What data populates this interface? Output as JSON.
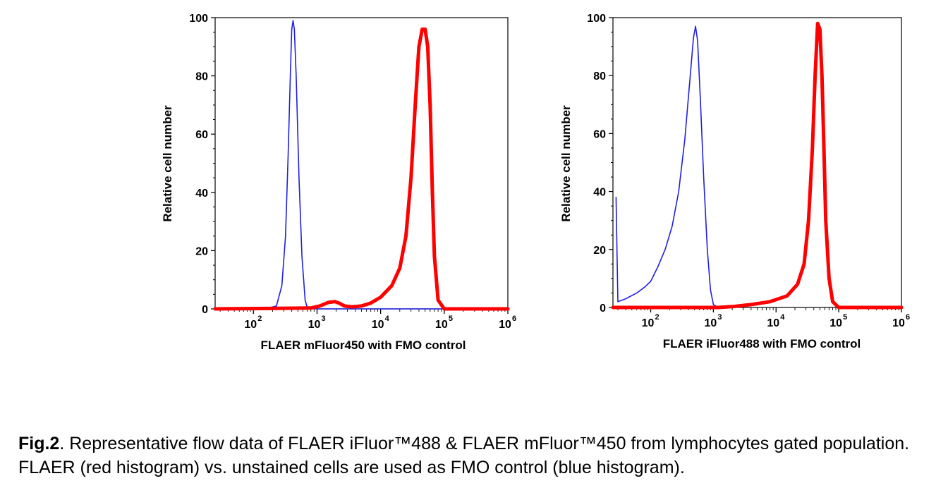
{
  "chart_data": [
    {
      "type": "line",
      "xscale": "log",
      "xlim": [
        25,
        1000000
      ],
      "ylim": [
        0,
        100
      ],
      "xlabel": "FLAER mFluor450 with FMO control",
      "ylabel": "Relative cell number",
      "yticks": [
        "0",
        "20",
        "40",
        "60",
        "80",
        "100"
      ],
      "xticks": [
        "10",
        "10",
        "10",
        "10",
        "10"
      ],
      "xtick_exps": [
        "2",
        "3",
        "4",
        "5",
        "6"
      ],
      "series": [
        {
          "color": "#1f1fe6",
          "x": [
            25,
            150,
            230,
            280,
            320,
            350,
            380,
            400,
            420,
            440,
            470,
            520,
            580,
            650,
            700,
            1000,
            1000000
          ],
          "y": [
            0,
            0,
            1,
            8,
            25,
            52,
            80,
            96,
            99,
            96,
            80,
            45,
            18,
            3,
            0.5,
            0,
            0
          ]
        },
        {
          "color": "#ff0000",
          "x": [
            25,
            800,
            1100,
            1500,
            1900,
            2200,
            2700,
            3500,
            5000,
            7000,
            10000,
            15000,
            20000,
            25000,
            30000,
            35000,
            40000,
            45000,
            50000,
            55000,
            60000,
            65000,
            70000,
            80000,
            100000,
            1000000
          ],
          "y": [
            0,
            0.3,
            1,
            2.2,
            2.5,
            2,
            1,
            0.7,
            1,
            2,
            4,
            8,
            14,
            25,
            45,
            70,
            90,
            96,
            96,
            90,
            70,
            40,
            18,
            3,
            0,
            0
          ]
        }
      ]
    },
    {
      "type": "line",
      "xscale": "log",
      "xlim": [
        25,
        1000000
      ],
      "ylim": [
        0,
        100
      ],
      "xlabel": "FLAER iFluor488 with FMO control",
      "ylabel": "Relative cell number",
      "yticks": [
        "0",
        "20",
        "40",
        "60",
        "80",
        "100"
      ],
      "xticks": [
        "10",
        "10",
        "10",
        "10",
        "10"
      ],
      "xtick_exps": [
        "2",
        "3",
        "4",
        "5",
        "6"
      ],
      "series": [
        {
          "color": "#1f1fe6",
          "x": [
            28,
            30,
            40,
            60,
            80,
            100,
            130,
            170,
            220,
            280,
            350,
            420,
            480,
            520,
            560,
            620,
            700,
            800,
            900,
            1000,
            1200,
            1400
          ],
          "y": [
            38,
            2,
            3,
            5,
            7,
            9,
            14,
            20,
            28,
            40,
            58,
            78,
            93,
            97,
            92,
            72,
            45,
            20,
            6,
            1,
            0,
            0
          ]
        },
        {
          "color": "#ff0000",
          "x": [
            25,
            1200,
            2000,
            4000,
            8000,
            15000,
            22000,
            28000,
            33000,
            38000,
            42000,
            46000,
            50000,
            54000,
            58000,
            62000,
            70000,
            80000,
            100000,
            1000000
          ],
          "y": [
            0,
            0,
            0.3,
            1,
            2,
            4,
            8,
            15,
            30,
            55,
            80,
            98,
            96,
            80,
            55,
            30,
            10,
            2,
            0,
            0
          ]
        }
      ]
    }
  ],
  "caption": {
    "bold": "Fig.2",
    "text": ". Representative flow data of FLAER iFluor™488 & FLAER mFluor™450 from lymphocytes gated population. FLAER (red histogram) vs. unstained cells are used as FMO control (blue histogram)."
  }
}
